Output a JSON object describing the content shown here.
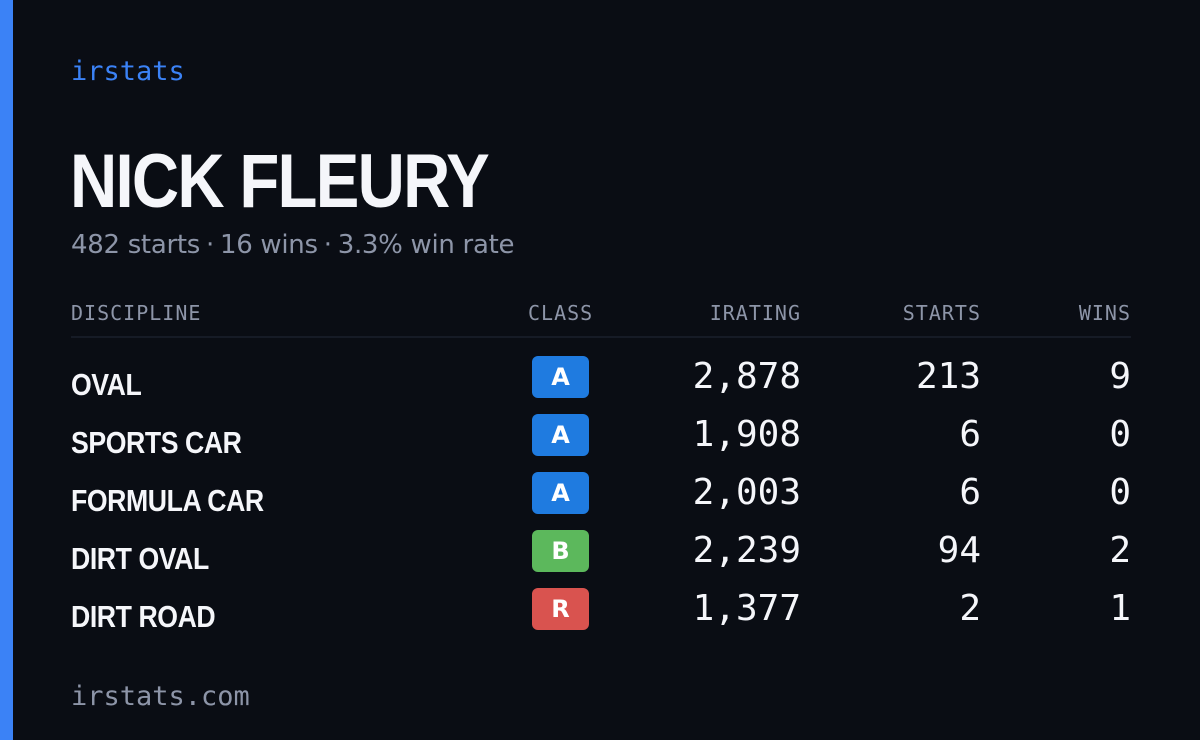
{
  "brand": "irstats",
  "driver": {
    "name": "NICK FLEURY",
    "starts_text": "482 starts",
    "wins_text": "16 wins",
    "win_rate_text": "3.3% win rate",
    "separator": "·"
  },
  "table": {
    "headers": {
      "discipline": "DISCIPLINE",
      "class": "CLASS",
      "irating": "IRATING",
      "starts": "STARTS",
      "wins": "WINS"
    },
    "rows": [
      {
        "discipline": "OVAL",
        "class": "A",
        "class_color": "#1f7be0",
        "irating": "2,878",
        "starts": "213",
        "wins": "9"
      },
      {
        "discipline": "SPORTS CAR",
        "class": "A",
        "class_color": "#1f7be0",
        "irating": "1,908",
        "starts": "6",
        "wins": "0"
      },
      {
        "discipline": "FORMULA CAR",
        "class": "A",
        "class_color": "#1f7be0",
        "irating": "2,003",
        "starts": "6",
        "wins": "0"
      },
      {
        "discipline": "DIRT OVAL",
        "class": "B",
        "class_color": "#5cb85c",
        "irating": "2,239",
        "starts": "94",
        "wins": "2"
      },
      {
        "discipline": "DIRT ROAD",
        "class": "R",
        "class_color": "#d9534f",
        "irating": "1,377",
        "starts": "2",
        "wins": "1"
      }
    ]
  },
  "footer": "irstats.com",
  "colors": {
    "background": "#0a0d14",
    "accent": "#3b82f6",
    "muted": "#8d95a8",
    "text": "#f5f6fa"
  }
}
